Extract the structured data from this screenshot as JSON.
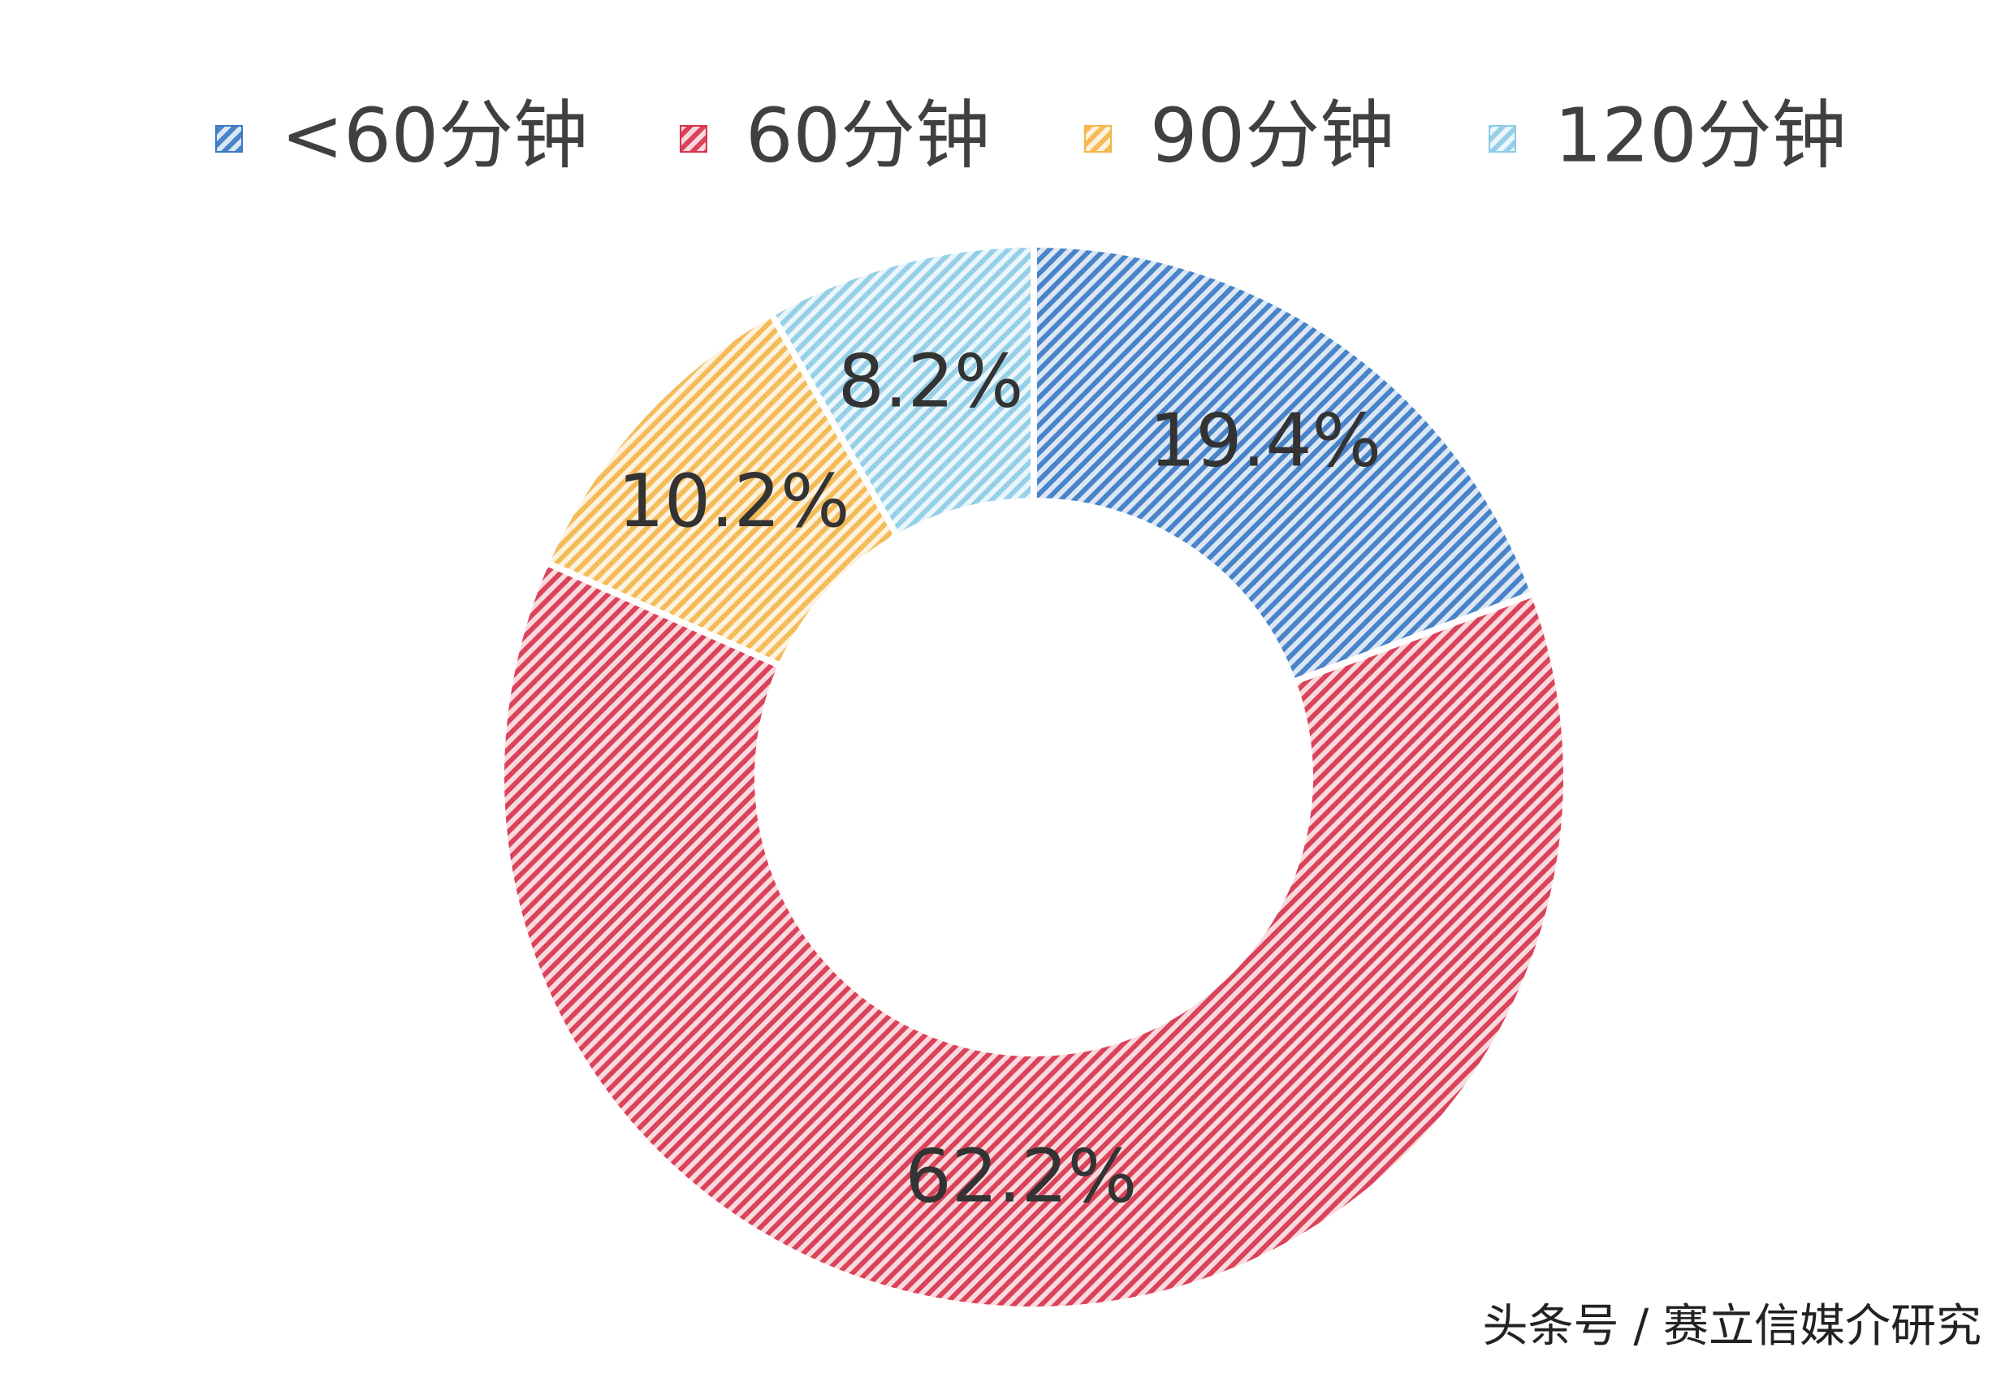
{
  "chart_data": {
    "type": "donut",
    "categories": [
      "<60分钟",
      "60分钟",
      "90分钟",
      "120分钟"
    ],
    "values": [
      19.4,
      62.2,
      10.2,
      8.2
    ],
    "value_labels": [
      "19.4%",
      "62.2%",
      "10.2%",
      "8.2%"
    ],
    "colors": [
      "#3a78c3",
      "#d8334a",
      "#f3b54a",
      "#8dcbe6"
    ],
    "legend": "top",
    "source": "头条号 / 赛立信媒介研究"
  }
}
